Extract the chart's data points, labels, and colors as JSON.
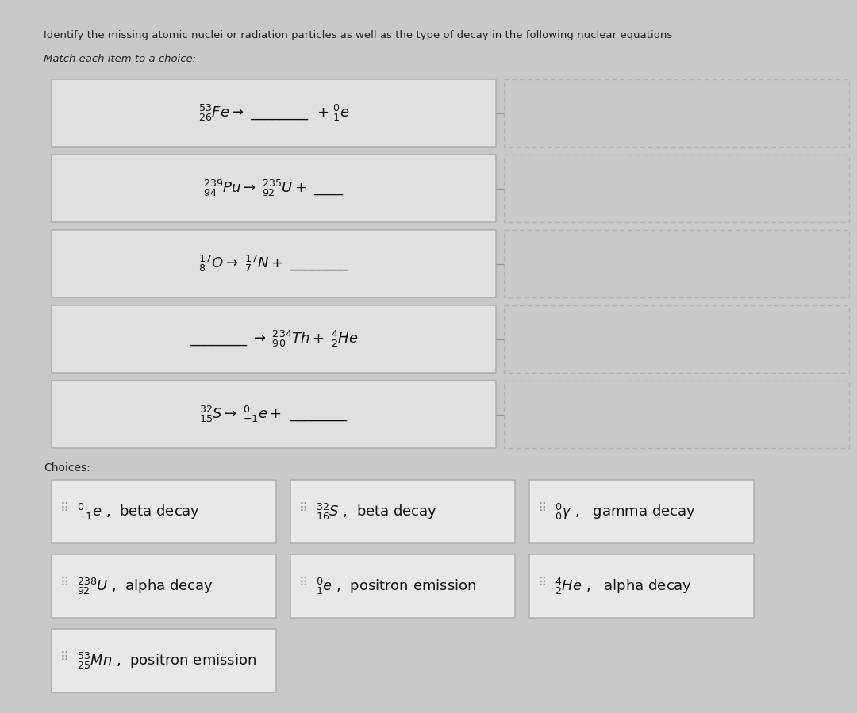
{
  "title": "Identify the missing atomic nuclei or radiation particles as well as the type of decay in the following nuclear equations",
  "subtitle": "Match each item to a choice:",
  "bg_color": "#c8c8c8",
  "eq_box_face": "#e0e0e0",
  "eq_box_edge": "#aaaaaa",
  "answer_box_face": "#c8c8c8",
  "answer_box_edge": "#b0b0b0",
  "choice_box_face": "#e8e8e8",
  "choice_box_edge": "#aaaaaa",
  "equations_latex": [
    "$^{53}_{26}Fe \\rightarrow$ \\underline{\\hspace{1.2cm}}  $+ \\; ^{0}_{1}e$",
    "$^{239}_{94}Pu \\rightarrow \\; ^{235}_{92}U +$ \\underline{\\hspace{0.6cm}}",
    "$^{17}_{8}O \\rightarrow \\; ^{17}_{7}N +$ \\underline{\\hspace{1.2cm}}",
    "\\underline{\\hspace{0.9cm}} $\\rightarrow \\; ^{234}_{90}Th + \\; ^{4}_{2}He$",
    "$^{32}_{15}S \\rightarrow \\; ^{0}_{-1}e +$ \\underline{\\hspace{1.2cm}}"
  ],
  "equations_parts": [
    [
      "$^{53}_{26}Fe \\rightarrow$",
      "__________",
      "$+ \\; ^{0}_{1}e$"
    ],
    [
      "$^{239}_{94}Pu \\rightarrow \\; ^{235}_{92}U +$",
      "____",
      ""
    ],
    [
      "$^{17}_{8}O \\rightarrow \\; ^{17}_{7}N +$",
      "__________",
      ""
    ],
    [
      "__________",
      "$\\rightarrow \\; ^{234}_{90}Th + \\; ^{4}_{2}He$",
      ""
    ],
    [
      "$^{32}_{15}S \\rightarrow \\; ^{0}_{-1}e +$",
      "__________",
      ""
    ]
  ],
  "choices": [
    "$^{0}_{-1}e$ ,  beta decay",
    "$^{32}_{16}S$ ,  beta decay",
    "$^{0}_{0}\\gamma$ ,   gamma decay",
    "$^{238}_{92}U$ ,  alpha decay",
    "$^{0}_{1}e$ ,  positron emission",
    "$^{4}_{2}He$ ,   alpha decay",
    "$^{53}_{25}Mn$ ,  positron emission"
  ],
  "drag_handle": "⋮⋮"
}
